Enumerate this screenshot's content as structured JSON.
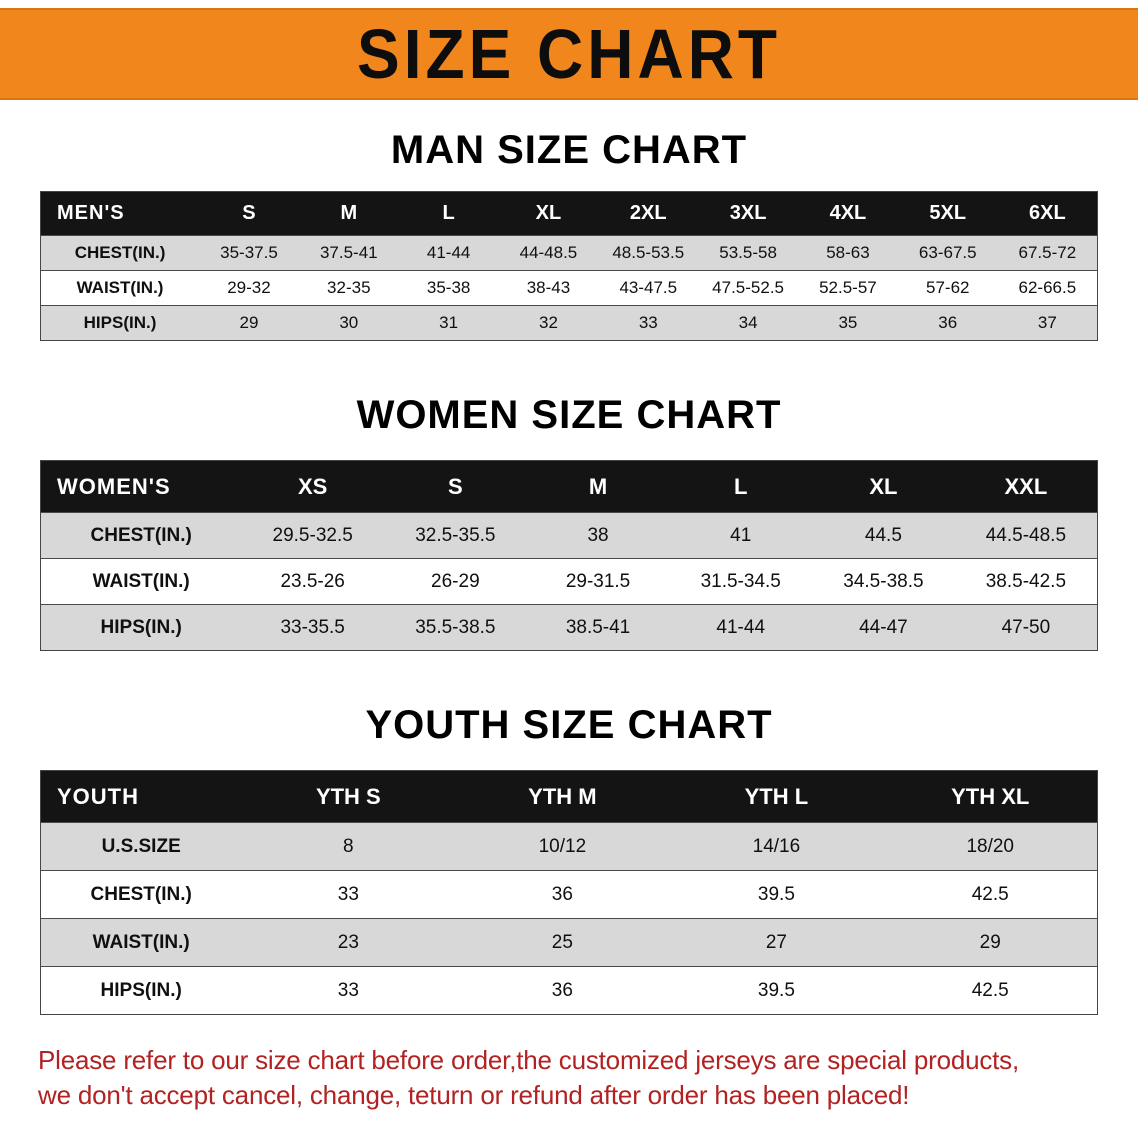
{
  "banner": {
    "title": "SIZE CHART"
  },
  "colors": {
    "banner_bg": "#f0861c",
    "table_header_bg": "#141414",
    "table_header_text": "#ffffff",
    "row_alt_bg": "#d8d8d8",
    "row_bg": "#ffffff",
    "heading_text": "#000000",
    "disclaimer_text": "#b22222"
  },
  "sections": [
    {
      "id": "men",
      "heading": "MAN SIZE CHART",
      "table": {
        "header": [
          "MEN'S",
          "S",
          "M",
          "L",
          "XL",
          "2XL",
          "3XL",
          "4XL",
          "5XL",
          "6XL"
        ],
        "rows": [
          [
            "CHEST(IN.)",
            "35-37.5",
            "37.5-41",
            "41-44",
            "44-48.5",
            "48.5-53.5",
            "53.5-58",
            "58-63",
            "63-67.5",
            "67.5-72"
          ],
          [
            "WAIST(IN.)",
            "29-32",
            "32-35",
            "35-38",
            "38-43",
            "43-47.5",
            "47.5-52.5",
            "52.5-57",
            "57-62",
            "62-66.5"
          ],
          [
            "HIPS(IN.)",
            "29",
            "30",
            "31",
            "32",
            "33",
            "34",
            "35",
            "36",
            "37"
          ]
        ]
      }
    },
    {
      "id": "women",
      "heading": "WOMEN SIZE CHART",
      "table": {
        "header": [
          "WOMEN'S",
          "XS",
          "S",
          "M",
          "L",
          "XL",
          "XXL"
        ],
        "rows": [
          [
            "CHEST(IN.)",
            "29.5-32.5",
            "32.5-35.5",
            "38",
            "41",
            "44.5",
            "44.5-48.5"
          ],
          [
            "WAIST(IN.)",
            "23.5-26",
            "26-29",
            "29-31.5",
            "31.5-34.5",
            "34.5-38.5",
            "38.5-42.5"
          ],
          [
            "HIPS(IN.)",
            "33-35.5",
            "35.5-38.5",
            "38.5-41",
            "41-44",
            "44-47",
            "47-50"
          ]
        ]
      }
    },
    {
      "id": "youth",
      "heading": "YOUTH SIZE CHART",
      "table": {
        "header": [
          "YOUTH",
          "YTH S",
          "YTH M",
          "YTH L",
          "YTH XL"
        ],
        "rows": [
          [
            "U.S.SIZE",
            "8",
            "10/12",
            "14/16",
            "18/20"
          ],
          [
            "CHEST(IN.)",
            "33",
            "36",
            "39.5",
            "42.5"
          ],
          [
            "WAIST(IN.)",
            "23",
            "25",
            "27",
            "29"
          ],
          [
            "HIPS(IN.)",
            "33",
            "36",
            "39.5",
            "42.5"
          ]
        ]
      }
    }
  ],
  "disclaimer": {
    "line1": "Please refer to our size chart before order,the customized jerseys are special products,",
    "line2": "we don't accept cancel, change, teturn or refund after order has been placed!"
  }
}
